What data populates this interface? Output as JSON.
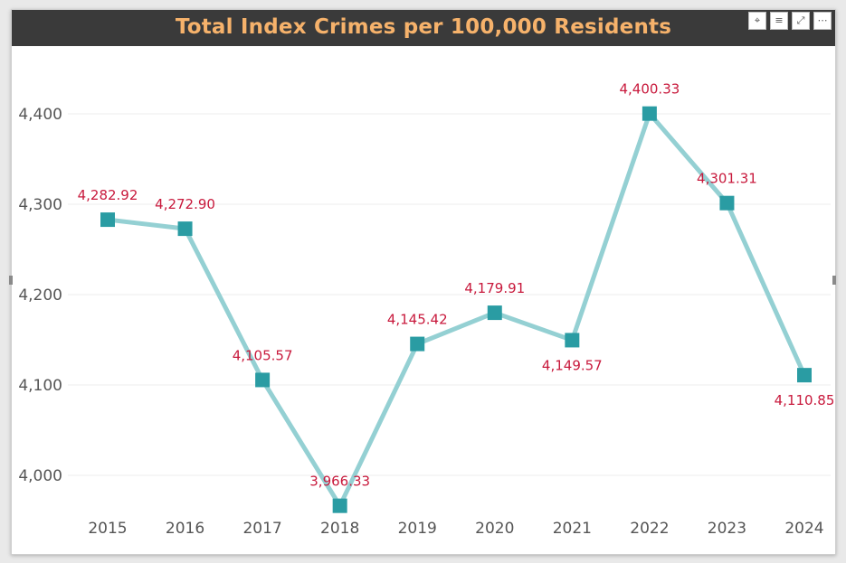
{
  "header": {
    "title": "Total Index Crimes per 100,000 Residents",
    "buttons": [
      {
        "icon": "pin-icon",
        "glyph": "⌖"
      },
      {
        "icon": "filter-icon",
        "glyph": "≡"
      },
      {
        "icon": "focus-mode-icon",
        "glyph": "⤢"
      },
      {
        "icon": "more-options-icon",
        "glyph": "⋯"
      }
    ]
  },
  "colors": {
    "title_bar": "#3a3a3a",
    "title_text": "#f6b26b",
    "line": "#94d0d3",
    "marker": "#2a9ca3",
    "data_label": "#c8193c",
    "axis_text": "#555555",
    "gridline": "#eeeeee"
  },
  "chart_data": {
    "type": "line",
    "title": "Total Index Crimes per 100,000 Residents",
    "xlabel": "",
    "ylabel": "",
    "categories": [
      "2015",
      "2016",
      "2017",
      "2018",
      "2019",
      "2020",
      "2021",
      "2022",
      "2023",
      "2024"
    ],
    "values": [
      4282.92,
      4272.9,
      4105.57,
      3966.33,
      4145.42,
      4179.91,
      4149.57,
      4400.33,
      4301.31,
      4110.85
    ],
    "data_labels": [
      "4,282.92",
      "4,272.90",
      "4,105.57",
      "3,966.33",
      "4,145.42",
      "4,179.91",
      "4,149.57",
      "4,400.33",
      "4,301.31",
      "4,110.85"
    ],
    "label_positions": [
      "above",
      "above",
      "above",
      "above",
      "above",
      "above",
      "below",
      "above",
      "above",
      "below"
    ],
    "yticks": [
      4000,
      4100,
      4200,
      4300,
      4400
    ],
    "ytick_labels": [
      "4,000",
      "4,100",
      "4,200",
      "4,300",
      "4,400"
    ],
    "ylim": [
      3950,
      4450
    ],
    "grid": true,
    "legend": "none",
    "marker": "square"
  }
}
